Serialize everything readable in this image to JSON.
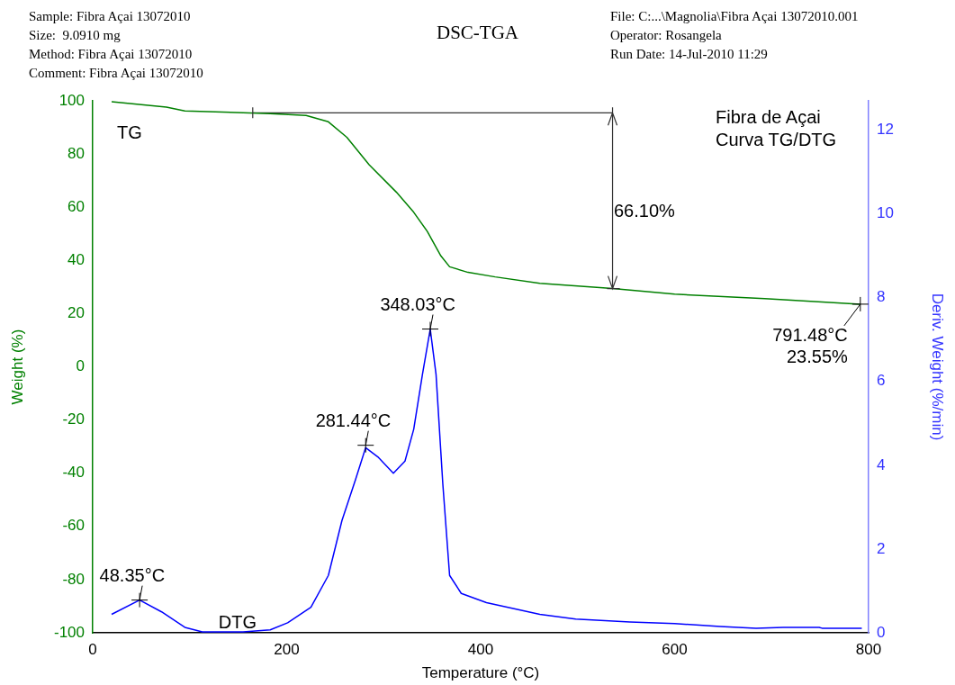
{
  "chart_data": {
    "type": "line",
    "title": "DSC-TGA",
    "xlabel": "Temperature (°C)",
    "ylabel": "Weight (%)",
    "y2label": "Deriv. Weight (%/min)",
    "xlim": [
      0,
      800
    ],
    "xticks": [
      0,
      200,
      400,
      600,
      800
    ],
    "ylim": [
      -100,
      100
    ],
    "yticks": [
      -100,
      -80,
      -60,
      -40,
      -20,
      0,
      20,
      40,
      60,
      80,
      100
    ],
    "y2lim": [
      0,
      12.7
    ],
    "y2ticks": [
      0,
      2,
      4,
      6,
      8,
      10,
      12
    ],
    "grid": false,
    "legend": false,
    "marker": "none",
    "line_style": "solid",
    "series": [
      {
        "name": "TG",
        "color": "#008000",
        "x": [
          19.5,
          76,
          95,
          155,
          183,
          220,
          243,
          262,
          285,
          313,
          331,
          345,
          359,
          368,
          387,
          415,
          461,
          536,
          600,
          693,
          791.48
        ],
        "values": [
          99.7,
          97.6,
          96.2,
          95.5,
          95.2,
          94.5,
          92.1,
          86.3,
          76,
          65.7,
          58.1,
          50.9,
          41.7,
          37.6,
          35.5,
          33.8,
          31.4,
          29.4,
          27.3,
          25.6,
          23.55
        ]
      },
      {
        "name": "DTG",
        "color": "#0000ff",
        "axis": "y2",
        "x": [
          19.5,
          48.35,
          71,
          95,
          113,
          155,
          183,
          201,
          225,
          243,
          257,
          271,
          281.44,
          294,
          310,
          322,
          331,
          340,
          348.03,
          354,
          361,
          368,
          380,
          406,
          461,
          498,
          554,
          600,
          647,
          684,
          712,
          749,
          752,
          793
        ],
        "values": [
          0.44,
          0.78,
          0.5,
          0.13,
          0.02,
          0.02,
          0.07,
          0.24,
          0.61,
          1.37,
          2.68,
          3.66,
          4.42,
          4.2,
          3.81,
          4.1,
          4.86,
          6.17,
          7.25,
          6.17,
          3.55,
          1.37,
          0.94,
          0.72,
          0.44,
          0.33,
          0.26,
          0.22,
          0.15,
          0.11,
          0.13,
          0.13,
          0.11,
          0.11
        ]
      },
      {
        "type": "line",
        "color": "#333333",
        "x": [
          165,
          536
        ],
        "values": [
          95.5,
          95.5
        ]
      }
    ],
    "annotations": [
      "Sample: Fibra Açai 13072010\nSize:  9.0910 mg\nMethod: Fibra Açai 13072010\nComment: Fibra Açai 13072010",
      "File: C:...\\Magnolia\\Fibra Açai 13072010.001\nOperator: Rosangela\nRun Date: 14-Jul-2010 11:29",
      "Fibra de Açai\nCurva TG/DTG",
      "66.10%",
      {
        "text": "48.35°C",
        "x": 48.35,
        "y": -87.7
      },
      {
        "text": "281.44°C",
        "x": 281.44,
        "y": -29.5
      },
      {
        "text": "348.03°C",
        "x": 348.03,
        "y": 14.2
      },
      {
        "text": "791.48°C\n23.55%",
        "x": 791.48,
        "y": 23.55
      }
    ]
  }
}
